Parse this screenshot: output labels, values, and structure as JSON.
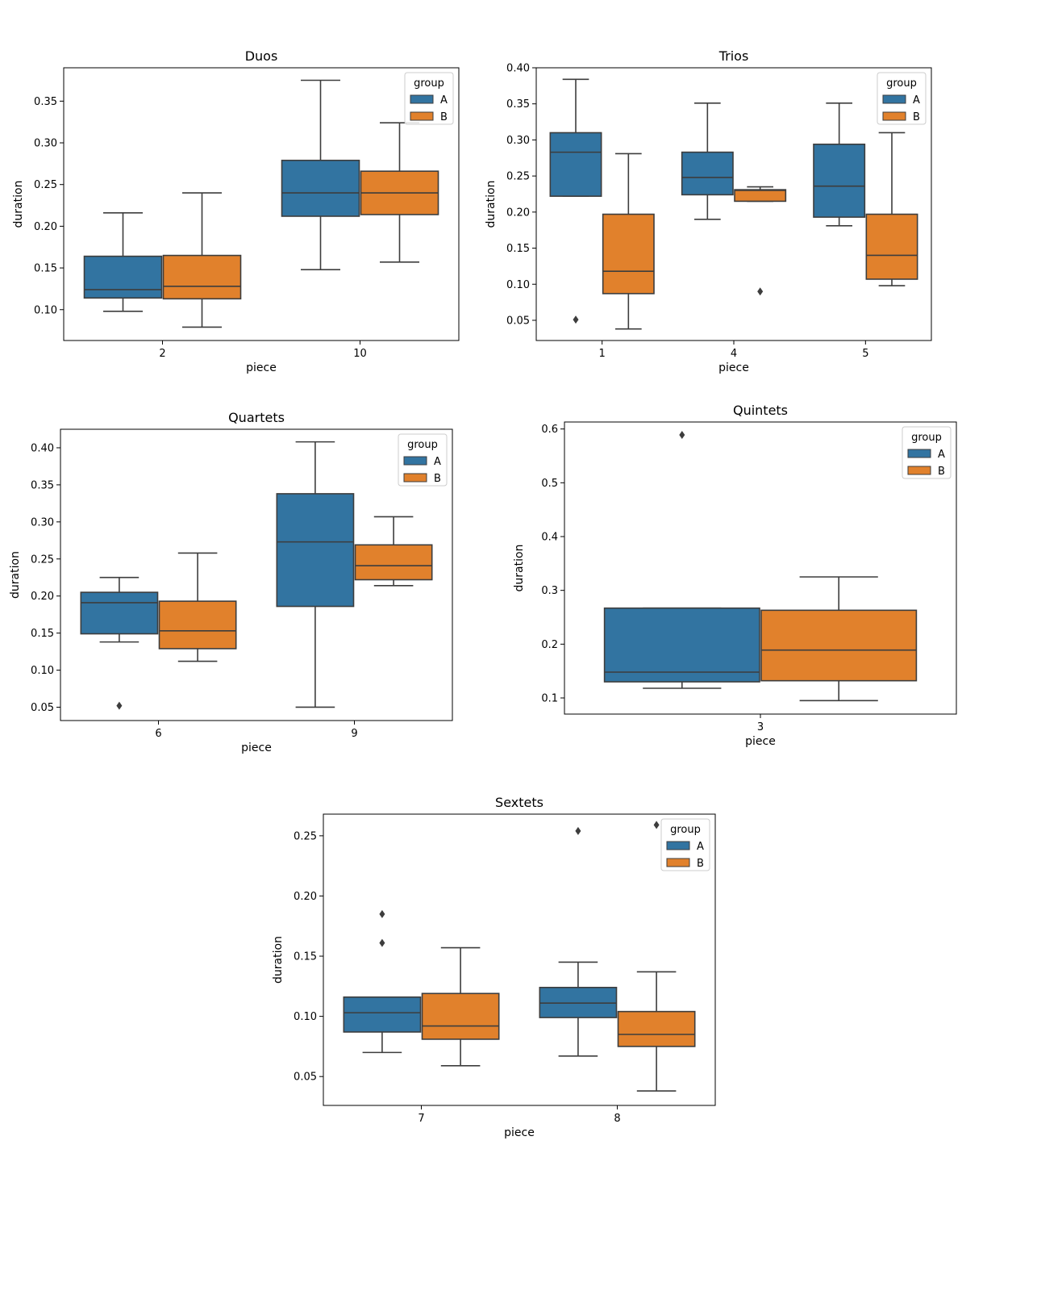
{
  "colors": {
    "A": "#3274a1",
    "B": "#e1812c",
    "line": "#3d3d3d"
  },
  "chart_data": [
    {
      "type": "box",
      "title": "Duos",
      "xlabel": "piece",
      "ylabel": "duration",
      "categories": [
        "2",
        "10"
      ],
      "ylim": [
        0.063,
        0.39
      ],
      "yticks": [
        "0.10",
        "0.15",
        "0.20",
        "0.25",
        "0.30",
        "0.35"
      ],
      "legend": {
        "title": "group",
        "entries": [
          "A",
          "B"
        ],
        "position": "top-right"
      },
      "boxes": [
        {
          "category": "2",
          "group": "A",
          "min": 0.098,
          "q1": 0.114,
          "median": 0.124,
          "q3": 0.164,
          "max": 0.216,
          "outliers": []
        },
        {
          "category": "2",
          "group": "B",
          "min": 0.079,
          "q1": 0.113,
          "median": 0.128,
          "q3": 0.165,
          "max": 0.24,
          "outliers": []
        },
        {
          "category": "10",
          "group": "A",
          "min": 0.148,
          "q1": 0.212,
          "median": 0.24,
          "q3": 0.279,
          "max": 0.375,
          "outliers": []
        },
        {
          "category": "10",
          "group": "B",
          "min": 0.157,
          "q1": 0.214,
          "median": 0.24,
          "q3": 0.266,
          "max": 0.324,
          "outliers": []
        }
      ]
    },
    {
      "type": "box",
      "title": "Trios",
      "xlabel": "piece",
      "ylabel": "duration",
      "categories": [
        "1",
        "4",
        "5"
      ],
      "ylim": [
        0.022,
        0.4
      ],
      "yticks": [
        "0.05",
        "0.10",
        "0.15",
        "0.20",
        "0.25",
        "0.30",
        "0.35",
        "0.40"
      ],
      "legend": {
        "title": "group",
        "entries": [
          "A",
          "B"
        ],
        "position": "top-right"
      },
      "boxes": [
        {
          "category": "1",
          "group": "A",
          "min": 0.222,
          "q1": 0.222,
          "median": 0.283,
          "q3": 0.31,
          "max": 0.384,
          "outliers": [
            0.051
          ]
        },
        {
          "category": "1",
          "group": "B",
          "min": 0.038,
          "q1": 0.087,
          "median": 0.118,
          "q3": 0.197,
          "max": 0.281,
          "outliers": []
        },
        {
          "category": "4",
          "group": "A",
          "min": 0.19,
          "q1": 0.224,
          "median": 0.248,
          "q3": 0.283,
          "max": 0.351,
          "outliers": []
        },
        {
          "category": "4",
          "group": "B",
          "min": 0.215,
          "q1": 0.215,
          "median": 0.23,
          "q3": 0.231,
          "max": 0.235,
          "outliers": [
            0.09
          ]
        },
        {
          "category": "5",
          "group": "A",
          "min": 0.181,
          "q1": 0.193,
          "median": 0.236,
          "q3": 0.294,
          "max": 0.351,
          "outliers": []
        },
        {
          "category": "5",
          "group": "B",
          "min": 0.098,
          "q1": 0.107,
          "median": 0.14,
          "q3": 0.197,
          "max": 0.31,
          "outliers": []
        }
      ]
    },
    {
      "type": "box",
      "title": "Quartets",
      "xlabel": "piece",
      "ylabel": "duration",
      "categories": [
        "6",
        "9"
      ],
      "ylim": [
        0.032,
        0.425
      ],
      "yticks": [
        "0.05",
        "0.10",
        "0.15",
        "0.20",
        "0.25",
        "0.30",
        "0.35",
        "0.40"
      ],
      "legend": {
        "title": "group",
        "entries": [
          "A",
          "B"
        ],
        "position": "top-right"
      },
      "boxes": [
        {
          "category": "6",
          "group": "A",
          "min": 0.138,
          "q1": 0.149,
          "median": 0.191,
          "q3": 0.205,
          "max": 0.225,
          "outliers": [
            0.052
          ]
        },
        {
          "category": "6",
          "group": "B",
          "min": 0.112,
          "q1": 0.129,
          "median": 0.153,
          "q3": 0.193,
          "max": 0.258,
          "outliers": []
        },
        {
          "category": "9",
          "group": "A",
          "min": 0.05,
          "q1": 0.186,
          "median": 0.273,
          "q3": 0.338,
          "max": 0.408,
          "outliers": []
        },
        {
          "category": "9",
          "group": "B",
          "min": 0.214,
          "q1": 0.222,
          "median": 0.241,
          "q3": 0.269,
          "max": 0.307,
          "outliers": []
        }
      ]
    },
    {
      "type": "box",
      "title": "Quintets",
      "xlabel": "piece",
      "ylabel": "duration",
      "categories": [
        "3"
      ],
      "ylim": [
        0.07,
        0.613
      ],
      "yticks": [
        "0.1",
        "0.2",
        "0.3",
        "0.4",
        "0.5",
        "0.6"
      ],
      "legend": {
        "title": "group",
        "entries": [
          "A",
          "B"
        ],
        "position": "top-right"
      },
      "boxes": [
        {
          "category": "3",
          "group": "A",
          "min": 0.118,
          "q1": 0.13,
          "median": 0.148,
          "q3": 0.267,
          "max": 0.267,
          "outliers": [
            0.589
          ]
        },
        {
          "category": "3",
          "group": "B",
          "min": 0.095,
          "q1": 0.132,
          "median": 0.189,
          "q3": 0.263,
          "max": 0.325,
          "outliers": []
        }
      ]
    },
    {
      "type": "box",
      "title": "Sextets",
      "xlabel": "piece",
      "ylabel": "duration",
      "categories": [
        "7",
        "8"
      ],
      "ylim": [
        0.026,
        0.268
      ],
      "yticks": [
        "0.05",
        "0.10",
        "0.15",
        "0.20",
        "0.25"
      ],
      "legend": {
        "title": "group",
        "entries": [
          "A",
          "B"
        ],
        "position": "top-right"
      },
      "boxes": [
        {
          "category": "7",
          "group": "A",
          "min": 0.07,
          "q1": 0.087,
          "median": 0.103,
          "q3": 0.116,
          "max": 0.116,
          "outliers": [
            0.161,
            0.185
          ]
        },
        {
          "category": "7",
          "group": "B",
          "min": 0.059,
          "q1": 0.081,
          "median": 0.092,
          "q3": 0.119,
          "max": 0.157,
          "outliers": []
        },
        {
          "category": "8",
          "group": "A",
          "min": 0.067,
          "q1": 0.099,
          "median": 0.111,
          "q3": 0.124,
          "max": 0.145,
          "outliers": [
            0.254
          ]
        },
        {
          "category": "8",
          "group": "B",
          "min": 0.038,
          "q1": 0.075,
          "median": 0.085,
          "q3": 0.104,
          "max": 0.137,
          "outliers": [
            0.259
          ]
        }
      ]
    }
  ]
}
